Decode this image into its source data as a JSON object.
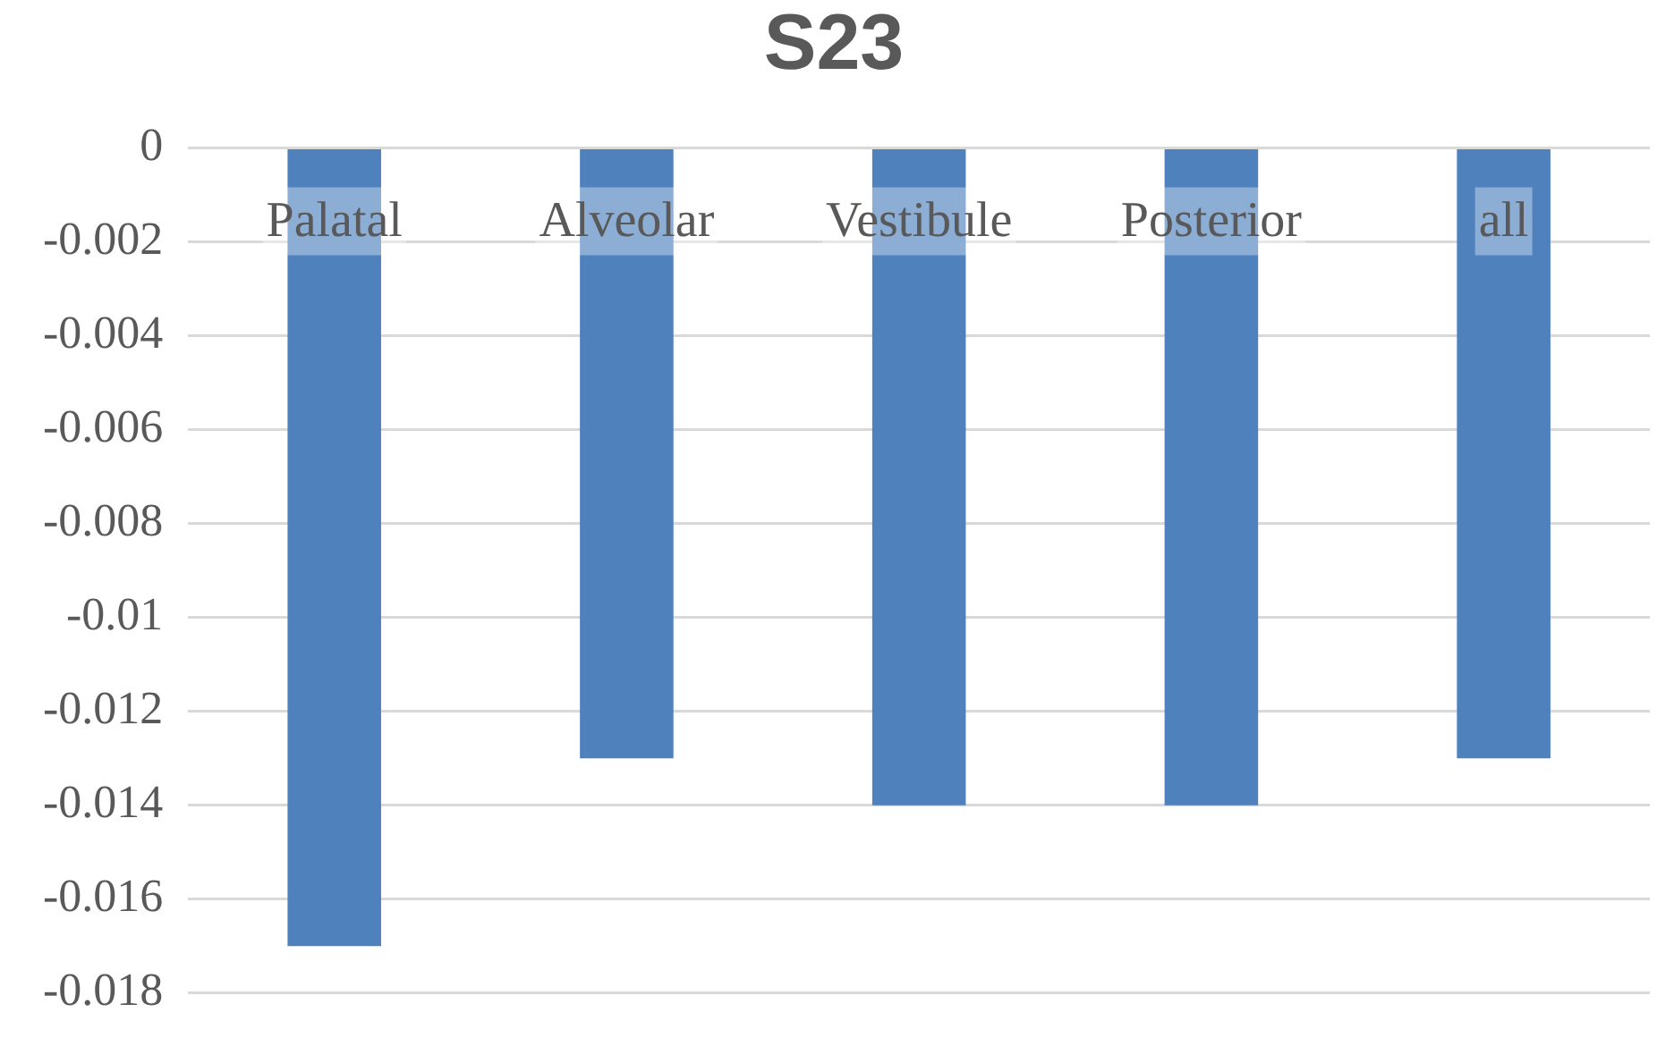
{
  "chart_data": {
    "type": "bar",
    "title": "S23",
    "categories": [
      "Palatal",
      "Alveolar",
      "Vestibule",
      "Posterior",
      "all"
    ],
    "values": [
      -0.017,
      -0.013,
      -0.014,
      -0.014,
      -0.013
    ],
    "color": "#4f81bd",
    "ylim": [
      -0.018,
      0
    ],
    "yticks": [
      0,
      -0.002,
      -0.004,
      -0.006,
      -0.008,
      -0.01,
      -0.012,
      -0.014,
      -0.016,
      -0.018
    ],
    "grid": "y"
  }
}
